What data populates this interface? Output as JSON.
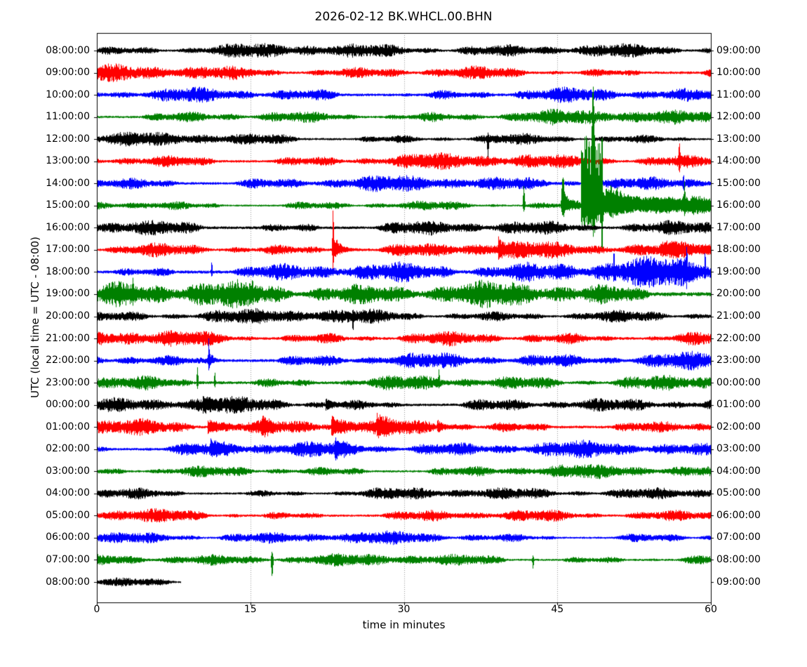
{
  "chart_data": {
    "type": "helicorder",
    "title": "2026-02-12 BK.WHCL.00.BHN",
    "xlabel": "time in minutes",
    "ylabel": "UTC (local time = UTC - 08:00)",
    "x_ticks": [
      0,
      15,
      30,
      45,
      60
    ],
    "x_grid": [
      15,
      30,
      45
    ],
    "x_range": [
      0,
      60
    ],
    "minutes_per_line": 60,
    "color_cycle": [
      "#000000",
      "#ff0000",
      "#0000ff",
      "#008000"
    ],
    "grid_color": "#999999",
    "axis_color": "#000000",
    "traces": [
      {
        "left": "08:00:00",
        "right": "09:00:00",
        "color": "#000000",
        "amp": 8
      },
      {
        "left": "09:00:00",
        "right": "10:00:00",
        "color": "#ff0000",
        "amp": 8.5
      },
      {
        "left": "10:00:00",
        "right": "11:00:00",
        "color": "#0000ff",
        "amp": 9
      },
      {
        "left": "11:00:00",
        "right": "12:00:00",
        "color": "#008000",
        "amp": 8
      },
      {
        "left": "12:00:00",
        "right": "13:00:00",
        "color": "#000000",
        "amp": 7.5,
        "spikes": [
          {
            "t": 38.2,
            "up": 6,
            "down": 22,
            "w": 0.12
          }
        ]
      },
      {
        "left": "13:00:00",
        "right": "14:00:00",
        "color": "#ff0000",
        "amp": 8.5,
        "spikes": [
          {
            "t": 56.9,
            "up": 22,
            "down": 8,
            "w": 0.12
          }
        ]
      },
      {
        "left": "14:00:00",
        "right": "15:00:00",
        "color": "#0000ff",
        "amp": 8.5,
        "spikes": [
          {
            "t": 57.3,
            "up": 12,
            "down": 6,
            "w": 0.1
          }
        ]
      },
      {
        "left": "15:00:00",
        "right": "16:00:00",
        "color": "#008000",
        "amp": 6.5,
        "spikes": [
          {
            "t": 41.7,
            "up": 28,
            "down": 8,
            "w": 0.15
          },
          {
            "t": 45.5,
            "up": 44,
            "down": 14,
            "w": 0.2
          },
          {
            "t": 48.5,
            "up": 118,
            "down": 25,
            "w": 0.2
          },
          {
            "t": 49.35,
            "up": 12,
            "down": 50,
            "w": 0.12
          },
          {
            "t": 57.4,
            "up": 26,
            "down": 8,
            "w": 0.1
          }
        ],
        "events": [
          {
            "type": "burst",
            "t": 45.55,
            "up": 16,
            "down": 6,
            "tau": 0.7
          },
          {
            "type": "box",
            "t0": 47.3,
            "t1": 49.4,
            "up": 92,
            "down": 26
          },
          {
            "type": "burst",
            "t": 49.4,
            "up": 26,
            "down": 13,
            "tau": 2.2
          },
          {
            "type": "burst",
            "t": 50.0,
            "up": 9,
            "down": 7,
            "tau": 14
          }
        ]
      },
      {
        "left": "16:00:00",
        "right": "17:00:00",
        "color": "#000000",
        "amp": 9.5
      },
      {
        "left": "17:00:00",
        "right": "18:00:00",
        "color": "#ff0000",
        "amp": 9,
        "events": [
          {
            "type": "burst",
            "t": 23.0,
            "up": 26,
            "down": 16,
            "tau": 0.6
          },
          {
            "type": "burst",
            "t": 39.2,
            "up": 14,
            "down": 9,
            "tau": 0.5
          },
          {
            "type": "box",
            "t0": 55,
            "t1": 60,
            "up": 5,
            "down": 4
          }
        ],
        "spikes": [
          {
            "t": 23.05,
            "up": 45,
            "down": 18,
            "w": 0.12
          }
        ]
      },
      {
        "left": "18:00:00",
        "right": "19:00:00",
        "color": "#0000ff",
        "amp": 12,
        "seg": [
          [
            0,
            0.8
          ],
          [
            20,
            0.9
          ],
          [
            35,
            1.0
          ],
          [
            48,
            1.2
          ],
          [
            55,
            1.35
          ],
          [
            60,
            1.35
          ]
        ],
        "spikes": [
          {
            "t": 11.2,
            "up": 16,
            "down": 6,
            "w": 0.1
          },
          {
            "t": 50.5,
            "up": 24,
            "down": 8,
            "w": 0.1
          },
          {
            "t": 57.6,
            "up": 26,
            "down": 8,
            "w": 0.1
          },
          {
            "t": 59.4,
            "up": 28,
            "down": 8,
            "w": 0.1
          }
        ]
      },
      {
        "left": "19:00:00",
        "right": "20:00:00",
        "color": "#008000",
        "amp": 14.5,
        "seg": [
          [
            0,
            1.15
          ],
          [
            10,
            1.1
          ],
          [
            25,
            1.0
          ],
          [
            40,
            0.95
          ],
          [
            60,
            0.9
          ]
        ],
        "spikes": [
          {
            "t": 3.5,
            "up": 18,
            "down": 8,
            "w": 0.12
          },
          {
            "t": 15.2,
            "up": 14,
            "down": 6,
            "w": 0.1
          }
        ]
      },
      {
        "left": "20:00:00",
        "right": "21:00:00",
        "color": "#000000",
        "amp": 8,
        "spikes": [
          {
            "t": 25.0,
            "up": 6,
            "down": 20,
            "w": 0.1
          }
        ]
      },
      {
        "left": "21:00:00",
        "right": "22:00:00",
        "color": "#ff0000",
        "amp": 9.5
      },
      {
        "left": "22:00:00",
        "right": "23:00:00",
        "color": "#0000ff",
        "amp": 9.5,
        "events": [
          {
            "type": "burst",
            "t": 10.9,
            "up": 12,
            "down": 6,
            "tau": 0.4
          }
        ],
        "spikes": [
          {
            "t": 10.9,
            "up": 18,
            "down": 6,
            "w": 0.1
          }
        ]
      },
      {
        "left": "23:00:00",
        "right": "00:00:00",
        "color": "#008000",
        "amp": 9.5,
        "spikes": [
          {
            "t": 9.8,
            "up": 22,
            "down": 8,
            "w": 0.12
          },
          {
            "t": 11.5,
            "up": 16,
            "down": 6,
            "w": 0.1
          },
          {
            "t": 33.4,
            "up": 14,
            "down": 6,
            "w": 0.1
          }
        ]
      },
      {
        "left": "00:00:00",
        "right": "01:00:00",
        "color": "#000000",
        "amp": 9,
        "seg": [
          [
            0,
            1
          ],
          [
            53,
            1
          ],
          [
            55,
            1.5
          ],
          [
            57,
            1.75
          ],
          [
            60,
            1.75
          ]
        ],
        "events": [
          {
            "type": "burst",
            "t": 10.3,
            "up": 8,
            "down": 6,
            "tau": 0.8
          },
          {
            "type": "burst",
            "t": 22.3,
            "up": 9,
            "down": 7,
            "tau": 0.7
          }
        ]
      },
      {
        "left": "01:00:00",
        "right": "02:00:00",
        "color": "#ff0000",
        "amp": 9.5,
        "events": [
          {
            "type": "burst",
            "t": 10.8,
            "up": 11,
            "down": 8,
            "tau": 0.9
          },
          {
            "type": "burst",
            "t": 16.1,
            "up": 9,
            "down": 7,
            "tau": 0.6
          },
          {
            "type": "burst",
            "t": 22.9,
            "up": 13,
            "down": 10,
            "tau": 0.8
          },
          {
            "type": "burst",
            "t": 27.3,
            "up": 10,
            "down": 8,
            "tau": 0.7
          },
          {
            "type": "burst",
            "t": 33.2,
            "up": 8,
            "down": 6,
            "tau": 0.6
          }
        ]
      },
      {
        "left": "02:00:00",
        "right": "03:00:00",
        "color": "#0000ff",
        "amp": 9,
        "events": [
          {
            "type": "burst",
            "t": 11.1,
            "up": 9,
            "down": 7,
            "tau": 0.7
          },
          {
            "type": "burst",
            "t": 23.2,
            "up": 9,
            "down": 7,
            "tau": 0.7
          }
        ]
      },
      {
        "left": "03:00:00",
        "right": "04:00:00",
        "color": "#008000",
        "amp": 7.5
      },
      {
        "left": "04:00:00",
        "right": "05:00:00",
        "color": "#000000",
        "amp": 7.5
      },
      {
        "left": "05:00:00",
        "right": "06:00:00",
        "color": "#ff0000",
        "amp": 8
      },
      {
        "left": "06:00:00",
        "right": "07:00:00",
        "color": "#0000ff",
        "amp": 7
      },
      {
        "left": "07:00:00",
        "right": "08:00:00",
        "color": "#008000",
        "amp": 7,
        "seg": [
          [
            0,
            0.9
          ],
          [
            12,
            1.1
          ],
          [
            22,
            1.0
          ],
          [
            60,
            1.0
          ]
        ],
        "spikes": [
          {
            "t": 17.1,
            "up": 12,
            "down": 26,
            "w": 0.15
          },
          {
            "t": 42.6,
            "up": 6,
            "down": 14,
            "w": 0.1
          }
        ]
      },
      {
        "left": "08:00:00",
        "right": "09:00:00",
        "color": "#000000",
        "amp": 6,
        "end": 8.2
      }
    ]
  }
}
